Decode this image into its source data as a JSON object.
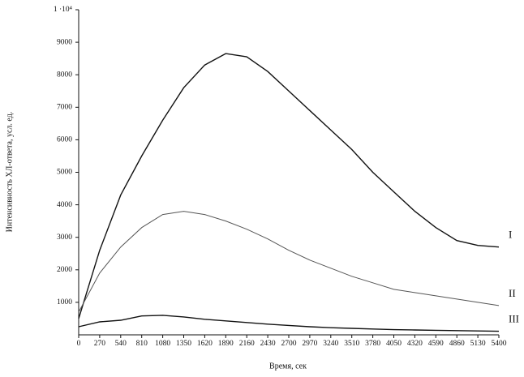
{
  "chart_data": {
    "type": "line",
    "y_label": "Интенсивность ХЛ-ответа, усл. ед.",
    "x_label": "Время, сек",
    "x": [
      0,
      270,
      540,
      810,
      1080,
      1350,
      1620,
      1890,
      2160,
      2430,
      2700,
      2970,
      3240,
      3510,
      3780,
      4050,
      4320,
      4590,
      4860,
      5130,
      5400
    ],
    "series": [
      {
        "name": "I",
        "color": "#111111",
        "values": [
          500,
          2600,
          4300,
          5500,
          6600,
          7600,
          8300,
          8650,
          8550,
          8100,
          7500,
          6900,
          6300,
          5700,
          5000,
          4400,
          3800,
          3300,
          2900,
          2750,
          2700
        ]
      },
      {
        "name": "II",
        "color": "#555555",
        "values": [
          700,
          1900,
          2700,
          3300,
          3700,
          3800,
          3700,
          3500,
          3250,
          2950,
          2600,
          2300,
          2050,
          1800,
          1600,
          1400,
          1300,
          1200,
          1100,
          1000,
          900
        ]
      },
      {
        "name": "III",
        "color": "#111111",
        "values": [
          250,
          400,
          450,
          580,
          600,
          550,
          480,
          430,
          380,
          330,
          290,
          250,
          220,
          200,
          180,
          160,
          150,
          140,
          130,
          120,
          110
        ]
      }
    ],
    "xlim": [
      0,
      5400
    ],
    "xticks": [
      0,
      270,
      540,
      810,
      1080,
      1350,
      1620,
      1890,
      2160,
      2430,
      2700,
      2970,
      3240,
      3510,
      3780,
      4050,
      4320,
      4590,
      4860,
      5130,
      5400
    ],
    "ylim": [
      0,
      10000
    ],
    "yticks": [
      1000,
      2000,
      3000,
      4000,
      5000,
      6000,
      7000,
      8000,
      9000,
      {
        "value": 10000,
        "label": "1 ·10⁴"
      }
    ],
    "grid": false
  }
}
